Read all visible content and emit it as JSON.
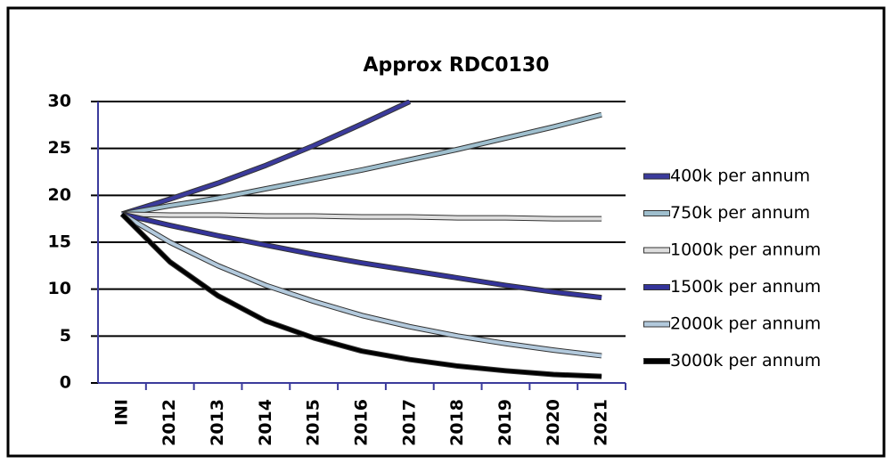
{
  "chart_data": {
    "type": "line",
    "title": "Approx  RDC0130",
    "categories": [
      "INI",
      "2012",
      "2013",
      "2014",
      "2015",
      "2016",
      "2017",
      "2018",
      "2019",
      "2020",
      "2021"
    ],
    "ylim": [
      0,
      30
    ],
    "yticks": [
      0,
      5,
      10,
      15,
      20,
      25,
      30
    ],
    "grid": true,
    "legend": "right",
    "series": [
      {
        "name": "400k per annum",
        "color": "#3b3b9c",
        "values": [
          18,
          19.6,
          21.3,
          23.2,
          25.3,
          27.6,
          30.0,
          null,
          null,
          null,
          null
        ]
      },
      {
        "name": "750k per annum",
        "color": "#9fbfce",
        "values": [
          18,
          18.9,
          19.7,
          20.7,
          21.7,
          22.7,
          23.8,
          24.9,
          26.1,
          27.3,
          28.6
        ]
      },
      {
        "name": "1000k per annum",
        "color": "#dddddd",
        "values": [
          18,
          17.9,
          17.9,
          17.8,
          17.8,
          17.7,
          17.7,
          17.6,
          17.6,
          17.5,
          17.5
        ]
      },
      {
        "name": "1500k per annum",
        "color": "#34349a",
        "values": [
          18,
          16.8,
          15.7,
          14.7,
          13.7,
          12.8,
          12.0,
          11.2,
          10.4,
          9.7,
          9.1
        ]
      },
      {
        "name": "2000k per annum",
        "color": "#b2c9dc",
        "values": [
          18,
          15.0,
          12.5,
          10.4,
          8.7,
          7.2,
          6.0,
          5.0,
          4.2,
          3.5,
          2.9
        ]
      },
      {
        "name": "3000k per annum",
        "color": "#000000",
        "values": [
          18,
          12.9,
          9.3,
          6.6,
          4.8,
          3.4,
          2.5,
          1.8,
          1.3,
          0.9,
          0.7
        ]
      }
    ]
  }
}
